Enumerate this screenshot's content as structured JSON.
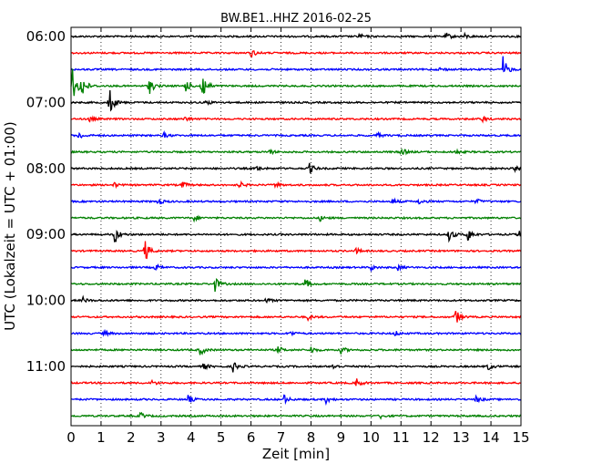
{
  "chart_data": {
    "type": "line",
    "title": "BW.BE1..HHZ 2016-02-25",
    "xlabel": "Zeit  [min]",
    "ylabel": "UTC (Lokalzeit = UTC + 01:00)",
    "xlim": [
      0,
      15
    ],
    "x_ticks": [
      "0",
      "1",
      "2",
      "3",
      "4",
      "5",
      "6",
      "7",
      "8",
      "9",
      "10",
      "11",
      "12",
      "13",
      "14",
      "15"
    ],
    "y_ticks": [
      "06:00",
      "07:00",
      "08:00",
      "09:00",
      "10:00",
      "11:00"
    ],
    "grid": "vertical dotted",
    "trace_interval_min": 15,
    "trace_colors": [
      "#000000",
      "#ff0000",
      "#0000ff",
      "#008000"
    ],
    "traces": [
      {
        "start": "06:00",
        "events": [
          [
            9.6,
            3
          ],
          [
            12.5,
            4
          ],
          [
            13.1,
            3
          ]
        ]
      },
      {
        "start": "06:15",
        "events": [
          [
            6.0,
            5
          ]
        ]
      },
      {
        "start": "06:30",
        "events": [
          [
            12.3,
            3
          ],
          [
            14.4,
            14
          ]
        ]
      },
      {
        "start": "06:45",
        "events": [
          [
            0.05,
            22
          ],
          [
            0.35,
            14
          ],
          [
            2.6,
            10
          ],
          [
            3.8,
            8
          ],
          [
            4.35,
            20
          ]
        ]
      },
      {
        "start": "07:00",
        "events": [
          [
            1.25,
            20
          ],
          [
            4.5,
            3
          ]
        ]
      },
      {
        "start": "07:15",
        "events": [
          [
            0.6,
            3
          ],
          [
            3.8,
            3
          ],
          [
            13.7,
            4
          ]
        ]
      },
      {
        "start": "07:30",
        "events": [
          [
            0.25,
            5
          ],
          [
            3.1,
            3
          ],
          [
            10.2,
            3
          ]
        ]
      },
      {
        "start": "07:45",
        "events": [
          [
            6.6,
            3
          ],
          [
            11.0,
            5
          ],
          [
            12.8,
            3
          ]
        ]
      },
      {
        "start": "08:00",
        "events": [
          [
            6.2,
            3
          ],
          [
            7.95,
            6
          ],
          [
            14.8,
            3
          ]
        ]
      },
      {
        "start": "08:15",
        "events": [
          [
            1.4,
            3
          ],
          [
            3.7,
            4
          ],
          [
            5.6,
            4
          ],
          [
            6.8,
            3
          ]
        ]
      },
      {
        "start": "08:30",
        "events": [
          [
            2.9,
            4
          ],
          [
            10.7,
            4
          ],
          [
            11.6,
            3
          ],
          [
            13.5,
            3
          ]
        ]
      },
      {
        "start": "08:45",
        "events": [
          [
            4.1,
            3
          ],
          [
            8.3,
            3
          ]
        ]
      },
      {
        "start": "09:00",
        "events": [
          [
            1.45,
            10
          ],
          [
            12.6,
            8
          ],
          [
            13.2,
            9
          ],
          [
            14.9,
            5
          ]
        ]
      },
      {
        "start": "09:15",
        "events": [
          [
            2.45,
            14
          ],
          [
            9.5,
            3
          ]
        ]
      },
      {
        "start": "09:30",
        "events": [
          [
            2.8,
            4
          ],
          [
            10.0,
            3
          ],
          [
            10.9,
            3
          ]
        ]
      },
      {
        "start": "09:45",
        "events": [
          [
            4.8,
            8
          ],
          [
            7.8,
            5
          ]
        ]
      },
      {
        "start": "10:00",
        "events": [
          [
            0.4,
            3
          ],
          [
            6.5,
            3
          ]
        ]
      },
      {
        "start": "10:15",
        "events": [
          [
            7.9,
            3
          ],
          [
            12.8,
            10
          ]
        ]
      },
      {
        "start": "10:30",
        "events": [
          [
            1.1,
            3
          ],
          [
            7.3,
            3
          ],
          [
            10.8,
            3
          ]
        ]
      },
      {
        "start": "10:45",
        "events": [
          [
            4.3,
            6
          ],
          [
            6.9,
            4
          ],
          [
            8.0,
            4
          ],
          [
            9.0,
            4
          ]
        ]
      },
      {
        "start": "11:00",
        "events": [
          [
            4.4,
            4
          ],
          [
            5.4,
            6
          ],
          [
            8.7,
            4
          ],
          [
            13.9,
            4
          ]
        ]
      },
      {
        "start": "11:15",
        "events": [
          [
            2.7,
            3
          ],
          [
            9.5,
            6
          ]
        ]
      },
      {
        "start": "11:30",
        "events": [
          [
            3.9,
            5
          ],
          [
            7.1,
            5
          ],
          [
            8.5,
            4
          ],
          [
            13.5,
            4
          ]
        ]
      },
      {
        "start": "11:45",
        "events": [
          [
            2.3,
            4
          ],
          [
            10.3,
            3
          ]
        ]
      }
    ]
  }
}
